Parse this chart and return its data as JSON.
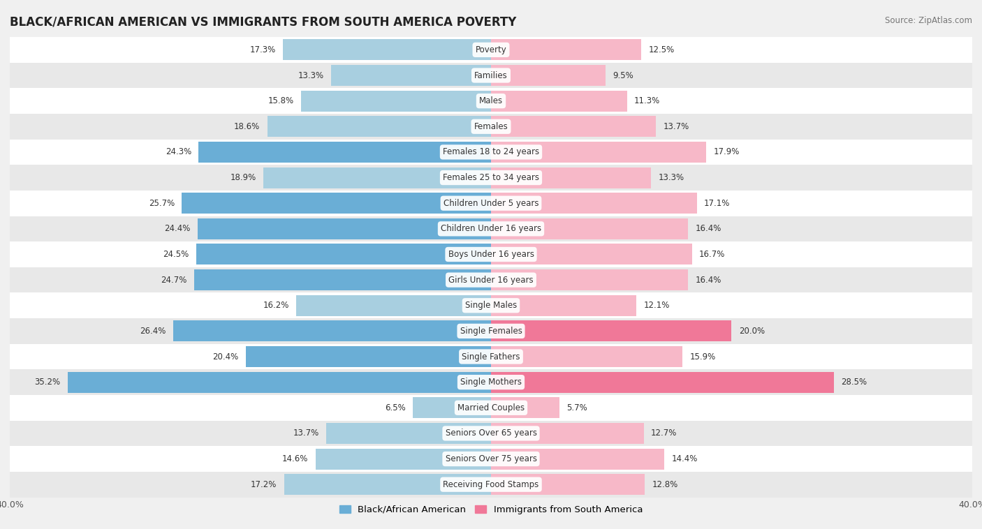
{
  "title": "BLACK/AFRICAN AMERICAN VS IMMIGRANTS FROM SOUTH AMERICA POVERTY",
  "source": "Source: ZipAtlas.com",
  "categories": [
    "Poverty",
    "Families",
    "Males",
    "Females",
    "Females 18 to 24 years",
    "Females 25 to 34 years",
    "Children Under 5 years",
    "Children Under 16 years",
    "Boys Under 16 years",
    "Girls Under 16 years",
    "Single Males",
    "Single Females",
    "Single Fathers",
    "Single Mothers",
    "Married Couples",
    "Seniors Over 65 years",
    "Seniors Over 75 years",
    "Receiving Food Stamps"
  ],
  "left_values": [
    17.3,
    13.3,
    15.8,
    18.6,
    24.3,
    18.9,
    25.7,
    24.4,
    24.5,
    24.7,
    16.2,
    26.4,
    20.4,
    35.2,
    6.5,
    13.7,
    14.6,
    17.2
  ],
  "right_values": [
    12.5,
    9.5,
    11.3,
    13.7,
    17.9,
    13.3,
    17.1,
    16.4,
    16.7,
    16.4,
    12.1,
    20.0,
    15.9,
    28.5,
    5.7,
    12.7,
    14.4,
    12.8
  ],
  "left_color_normal": "#a8cfe0",
  "left_color_highlight": "#6aaed6",
  "right_color_normal": "#f7b8c8",
  "right_color_highlight": "#f07898",
  "left_label": "Black/African American",
  "right_label": "Immigrants from South America",
  "highlight_threshold": 20.0,
  "axis_limit": 40.0,
  "bg_color": "#f0f0f0",
  "row_bg_even": "#ffffff",
  "row_bg_odd": "#e8e8e8"
}
